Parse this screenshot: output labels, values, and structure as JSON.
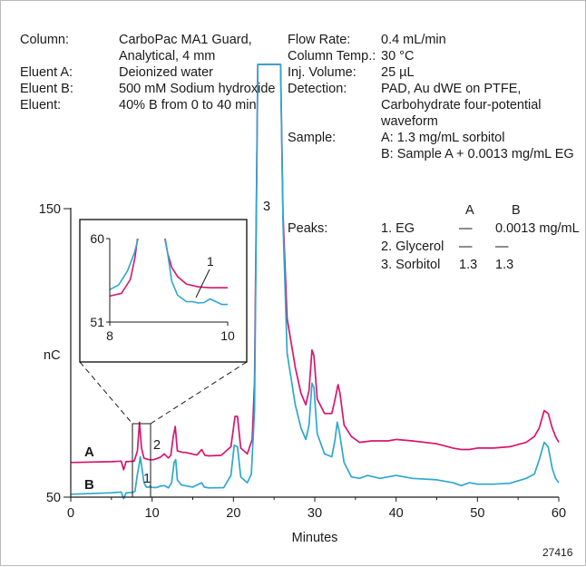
{
  "conditions": {
    "left": [
      {
        "label": "Column:",
        "value": "CarboPac MA1 Guard,"
      },
      {
        "label": "",
        "value": "Analytical, 4 mm"
      },
      {
        "label": "Eluent A:",
        "value": "Deionized water"
      },
      {
        "label": "Eluent B:",
        "value": "500 mM Sodium hydroxide"
      },
      {
        "label": "Eluent:",
        "value": "40% B from 0 to 40 min"
      }
    ],
    "right": [
      {
        "label": "Flow Rate:",
        "value": "0.4 mL/min"
      },
      {
        "label": "Column Temp.:",
        "value": "30 °C"
      },
      {
        "label": "Inj. Volume:",
        "value": "25 µL"
      },
      {
        "label": "Detection:",
        "value": "PAD, Au dWE on PTFE,"
      },
      {
        "label": "",
        "value": "Carbohydrate four-potential"
      },
      {
        "label": "",
        "value": "waveform"
      },
      {
        "label": "Sample:",
        "value": "A: 1.3 mg/mL sorbitol"
      },
      {
        "label": "",
        "value": "B: Sample A + 0.0013 mg/mL EG"
      }
    ]
  },
  "peaks_table": {
    "label": "Peaks:",
    "col_a": "A",
    "col_b": "B",
    "rows": [
      {
        "name": "1. EG",
        "a": "—",
        "b": "0.0013 mg/mL"
      },
      {
        "name": "2. Glycerol",
        "a": "—",
        "b": "—"
      },
      {
        "name": "3. Sorbitol",
        "a": "1.3",
        "b": "1.3"
      }
    ]
  },
  "figure_id": "27416",
  "colors": {
    "trace_a": "#d6166e",
    "trace_b": "#2ea7cf",
    "axis": "#1a1a1a"
  },
  "chart_data": {
    "type": "line",
    "xlabel": "Minutes",
    "ylabel": "nC",
    "xlim": [
      0,
      60
    ],
    "ylim": [
      50,
      150
    ],
    "xticks": [
      0,
      10,
      20,
      30,
      40,
      50,
      60
    ],
    "yticks": [
      50,
      150
    ],
    "series": [
      {
        "name": "A",
        "color": "#d6166e",
        "points": [
          [
            0,
            62
          ],
          [
            5,
            62.3
          ],
          [
            6.2,
            62.5
          ],
          [
            6.5,
            59.5
          ],
          [
            6.8,
            62.3
          ],
          [
            7.8,
            62.5
          ],
          [
            8.2,
            66
          ],
          [
            8.45,
            76
          ],
          [
            8.7,
            67
          ],
          [
            9.0,
            63.5
          ],
          [
            9.6,
            63
          ],
          [
            10.2,
            63
          ],
          [
            11,
            63.8
          ],
          [
            11.5,
            65
          ],
          [
            12,
            63.6
          ],
          [
            12.3,
            64.5
          ],
          [
            12.6,
            71
          ],
          [
            12.85,
            74.5
          ],
          [
            13.1,
            66
          ],
          [
            13.8,
            65.5
          ],
          [
            14.1,
            65.5
          ],
          [
            15.5,
            64.6
          ],
          [
            16.1,
            66.5
          ],
          [
            16.5,
            64.5
          ],
          [
            17,
            64.3
          ],
          [
            18.5,
            64.5
          ],
          [
            19.7,
            67.5
          ],
          [
            20.2,
            78
          ],
          [
            20.5,
            78
          ],
          [
            20.9,
            67
          ],
          [
            21.7,
            65
          ],
          [
            22.3,
            70
          ],
          [
            22.6,
            90
          ],
          [
            22.8,
            145
          ],
          [
            23.0,
            200
          ],
          [
            25.8,
            200
          ],
          [
            26.1,
            148
          ],
          [
            26.6,
            112
          ],
          [
            27.6,
            95
          ],
          [
            28.3,
            86
          ],
          [
            28.9,
            82
          ],
          [
            29.3,
            87
          ],
          [
            29.65,
            101
          ],
          [
            29.9,
            99
          ],
          [
            30.3,
            84
          ],
          [
            31.2,
            79
          ],
          [
            32.1,
            79
          ],
          [
            32.5,
            84
          ],
          [
            32.85,
            89
          ],
          [
            33.1,
            86
          ],
          [
            33.6,
            75
          ],
          [
            34.5,
            71
          ],
          [
            35.5,
            69
          ],
          [
            37,
            69.5
          ],
          [
            39,
            69.5
          ],
          [
            40,
            70
          ],
          [
            42,
            69.5
          ],
          [
            45,
            68.5
          ],
          [
            47,
            67
          ],
          [
            48,
            66.5
          ],
          [
            49,
            66.5
          ],
          [
            50,
            67
          ],
          [
            52,
            67
          ],
          [
            54,
            67.5
          ],
          [
            56,
            69
          ],
          [
            57,
            71
          ],
          [
            57.6,
            74
          ],
          [
            58.2,
            80
          ],
          [
            58.7,
            79
          ],
          [
            59.2,
            74
          ],
          [
            59.6,
            71
          ],
          [
            60,
            69
          ]
        ]
      },
      {
        "name": "B",
        "color": "#2ea7cf",
        "points": [
          [
            0,
            51
          ],
          [
            5,
            51.5
          ],
          [
            6.2,
            51.8
          ],
          [
            6.5,
            49.5
          ],
          [
            6.8,
            51.5
          ],
          [
            7.6,
            51.6
          ],
          [
            7.9,
            52
          ],
          [
            8.2,
            58
          ],
          [
            8.4,
            61
          ],
          [
            8.55,
            64
          ],
          [
            8.75,
            60
          ],
          [
            9.0,
            55
          ],
          [
            9.3,
            53.5
          ],
          [
            9.6,
            53.4
          ],
          [
            9.75,
            53.9
          ],
          [
            9.9,
            53.4
          ],
          [
            10.5,
            53.3
          ],
          [
            11,
            53.8
          ],
          [
            11.5,
            54
          ],
          [
            12,
            53.2
          ],
          [
            12.4,
            55
          ],
          [
            12.7,
            62
          ],
          [
            12.9,
            63
          ],
          [
            13.1,
            56
          ],
          [
            13.6,
            54.2
          ],
          [
            15,
            53.5
          ],
          [
            16.1,
            55
          ],
          [
            16.4,
            53.5
          ],
          [
            17,
            53.2
          ],
          [
            18.8,
            53.3
          ],
          [
            19.7,
            57.5
          ],
          [
            20.1,
            68
          ],
          [
            20.5,
            67.5
          ],
          [
            20.9,
            57
          ],
          [
            21.7,
            55
          ],
          [
            22.2,
            58
          ],
          [
            22.6,
            80
          ],
          [
            22.8,
            140
          ],
          [
            23.0,
            200
          ],
          [
            25.8,
            200
          ],
          [
            26.1,
            145
          ],
          [
            26.6,
            100
          ],
          [
            27.6,
            82
          ],
          [
            28.3,
            74
          ],
          [
            28.9,
            70
          ],
          [
            29.3,
            75
          ],
          [
            29.65,
            89.5
          ],
          [
            29.9,
            88
          ],
          [
            30.3,
            72
          ],
          [
            31.2,
            65
          ],
          [
            32.1,
            64
          ],
          [
            32.5,
            70
          ],
          [
            32.75,
            76
          ],
          [
            33.0,
            73
          ],
          [
            33.6,
            62
          ],
          [
            34.5,
            57
          ],
          [
            35.5,
            56.5
          ],
          [
            36.5,
            57.5
          ],
          [
            38,
            56.5
          ],
          [
            40,
            57.5
          ],
          [
            42,
            56.5
          ],
          [
            45,
            56
          ],
          [
            47,
            55
          ],
          [
            48,
            54
          ],
          [
            49,
            55
          ],
          [
            50,
            54.5
          ],
          [
            52,
            54.5
          ],
          [
            54,
            54.8
          ],
          [
            56,
            56.5
          ],
          [
            57,
            58
          ],
          [
            57.6,
            63
          ],
          [
            58.2,
            69
          ],
          [
            58.7,
            67.5
          ],
          [
            59.2,
            60
          ],
          [
            59.6,
            56.5
          ],
          [
            60,
            55
          ]
        ]
      }
    ],
    "annotations": {
      "trace_labels": [
        "A",
        "B"
      ],
      "peak_labels": [
        "1",
        "2",
        "3"
      ]
    },
    "inset": {
      "type": "line",
      "xlim": [
        8,
        10
      ],
      "ylim": [
        51,
        60
      ],
      "xticks": [
        8,
        10
      ],
      "yticks": [
        51,
        60
      ],
      "peak_label": "1",
      "series": [
        {
          "name": "A",
          "color": "#d6166e",
          "points": [
            [
              8.0,
              53.8
            ],
            [
              8.2,
              54.1
            ],
            [
              8.35,
              55.6
            ],
            [
              8.43,
              58
            ],
            [
              8.48,
              60.5
            ],
            [
              8.92,
              60.5
            ],
            [
              8.98,
              58.5
            ],
            [
              9.05,
              56.9
            ],
            [
              9.15,
              55.9
            ],
            [
              9.3,
              55.1
            ],
            [
              9.5,
              54.8
            ],
            [
              9.7,
              54.7
            ],
            [
              9.85,
              54.7
            ],
            [
              10,
              54.7
            ]
          ]
        },
        {
          "name": "B",
          "color": "#2ea7cf",
          "points": [
            [
              8.0,
              54.5
            ],
            [
              8.15,
              55
            ],
            [
              8.3,
              56.5
            ],
            [
              8.42,
              58.5
            ],
            [
              8.5,
              60.5
            ],
            [
              8.93,
              60.5
            ],
            [
              8.98,
              58.5
            ],
            [
              9.05,
              55.4
            ],
            [
              9.15,
              53.9
            ],
            [
              9.3,
              53.2
            ],
            [
              9.4,
              53.2
            ],
            [
              9.5,
              53.05
            ],
            [
              9.6,
              53.1
            ],
            [
              9.7,
              53.5
            ],
            [
              9.8,
              53.2
            ],
            [
              9.9,
              52.9
            ],
            [
              10,
              52.9
            ]
          ]
        }
      ]
    }
  }
}
